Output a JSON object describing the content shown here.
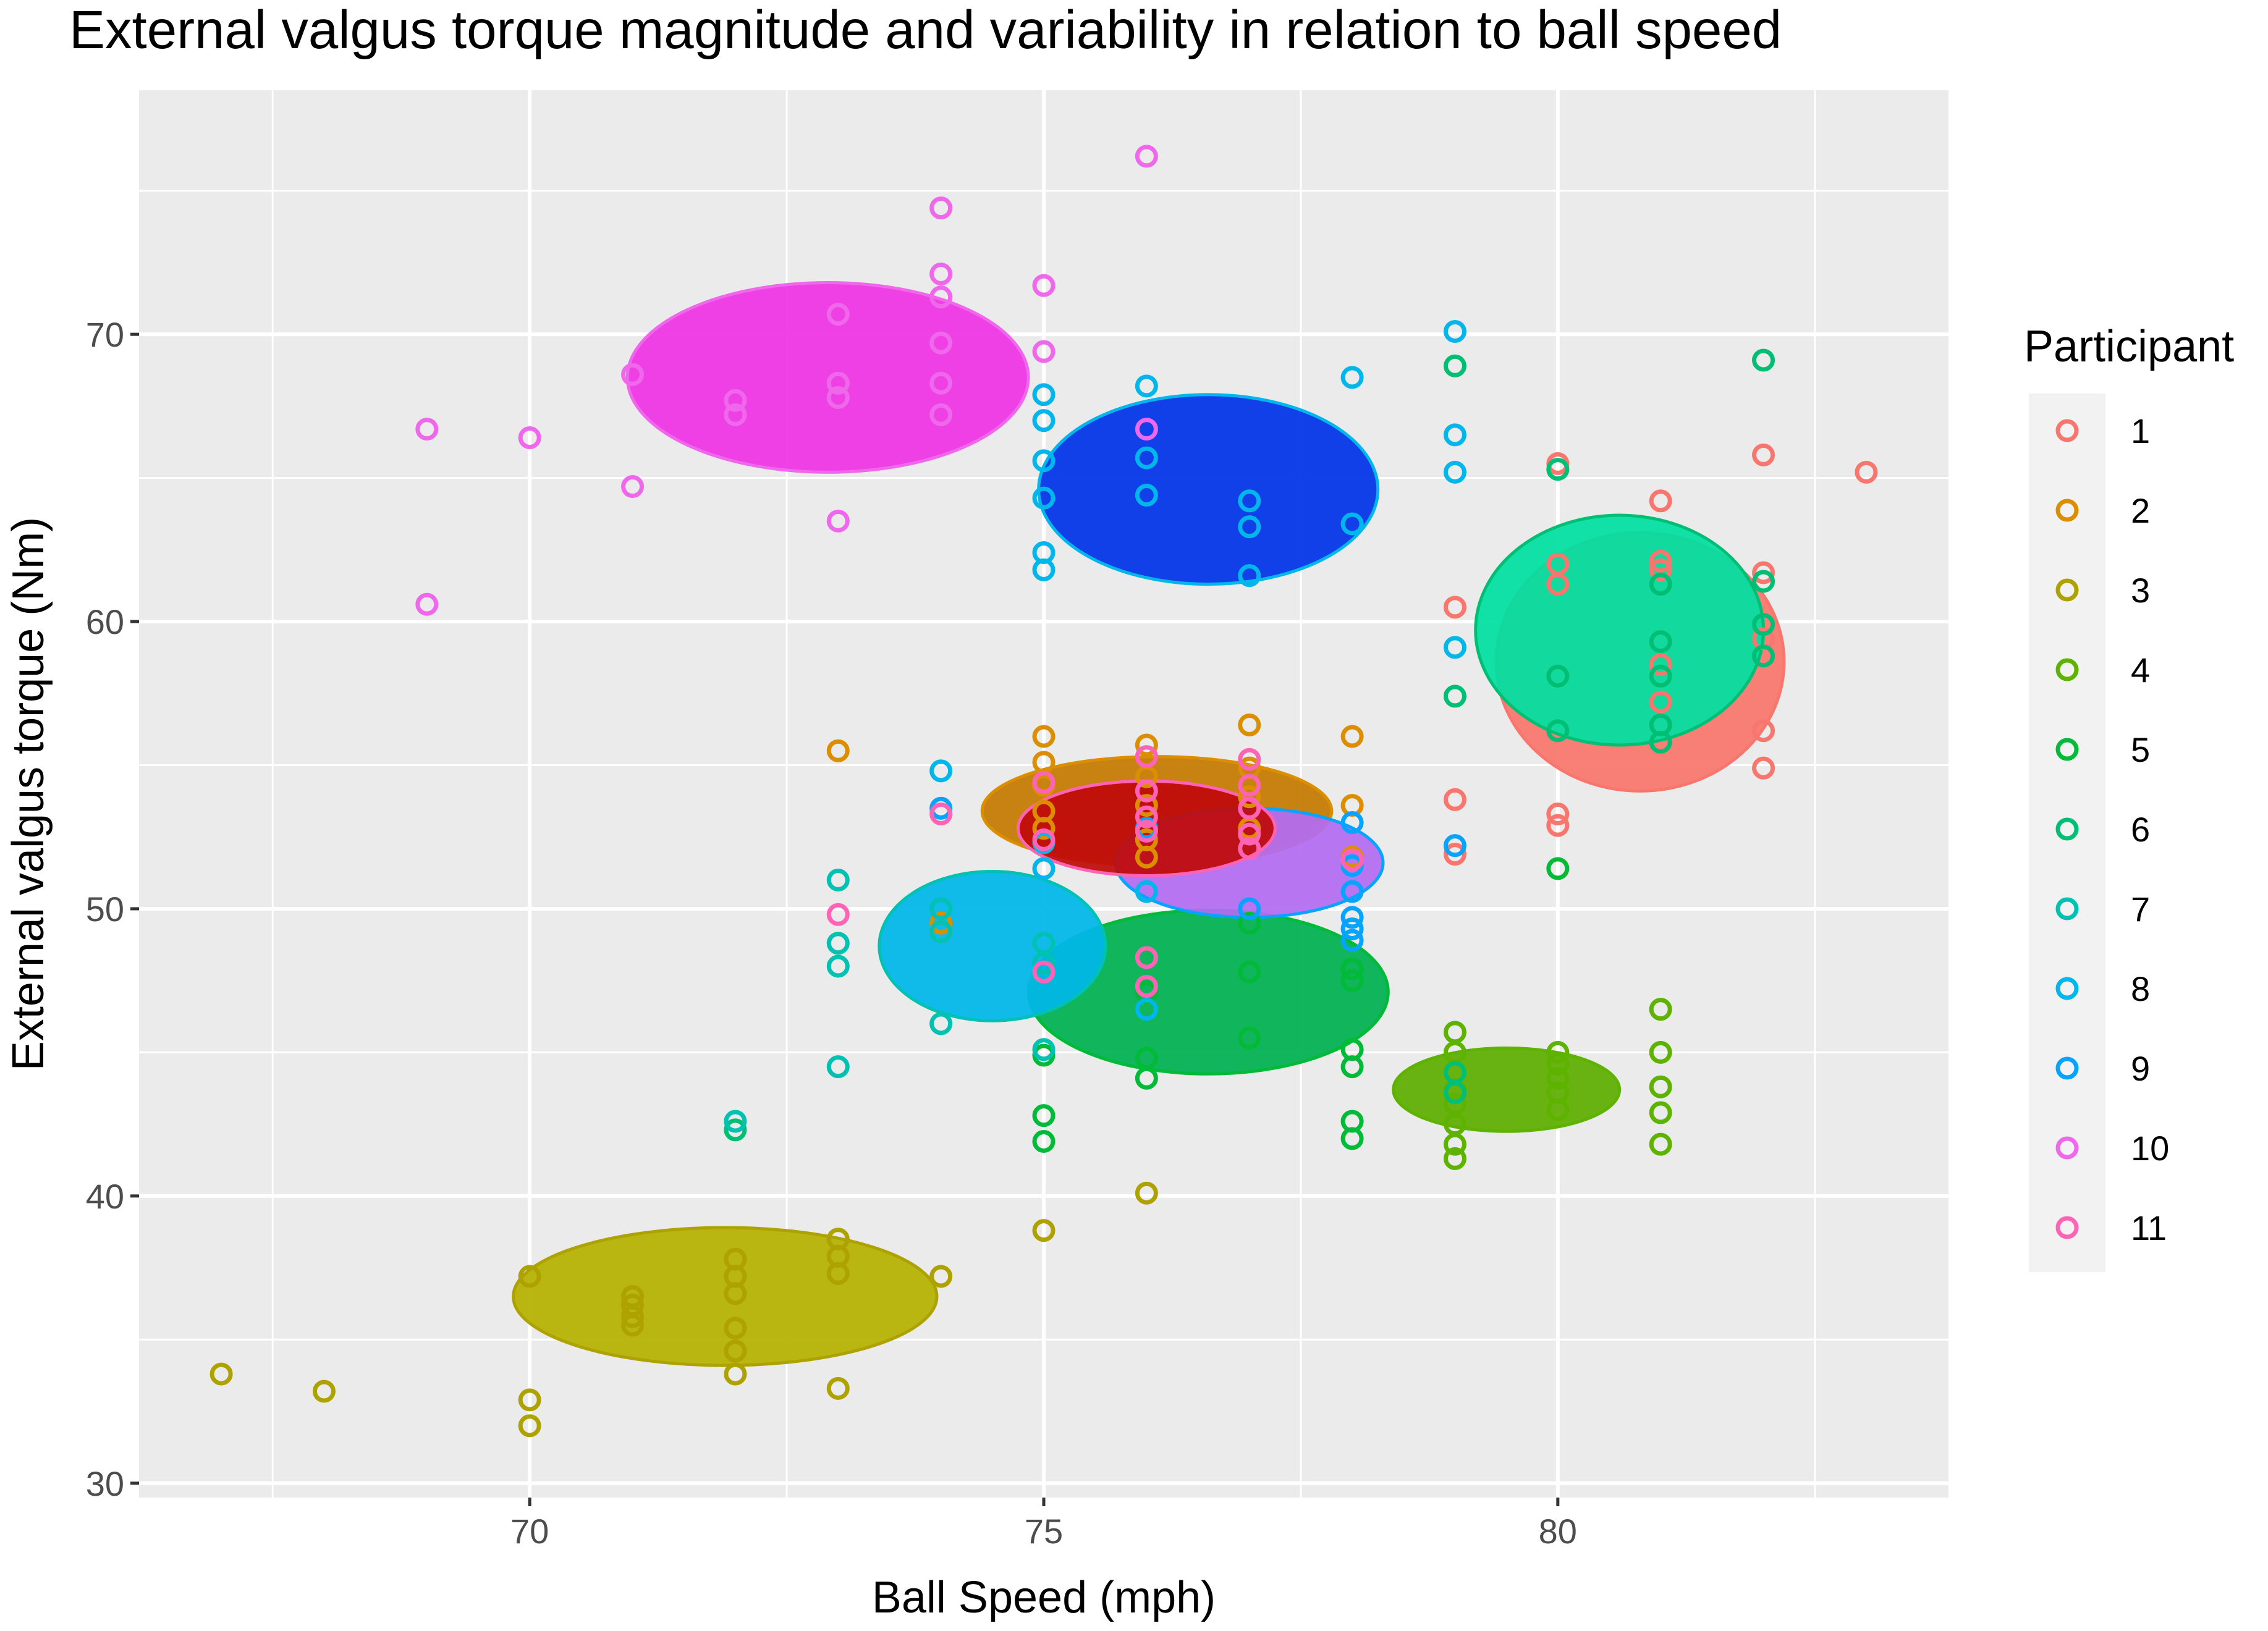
{
  "chart_data": {
    "type": "scatter",
    "title": "External valgus torque magnitude and variability in relation to ball speed",
    "xlabel": "Ball Speed (mph)",
    "ylabel": "External valgus torque (Nm)",
    "xlim": [
      66.2,
      83.8
    ],
    "ylim": [
      29.5,
      78.5
    ],
    "x_ticks": [
      70,
      75,
      80
    ],
    "y_ticks": [
      30,
      40,
      50,
      60,
      70
    ],
    "x_tick_labels": [
      "70",
      "75",
      "80"
    ],
    "y_tick_labels": [
      "30",
      "40",
      "50",
      "60",
      "70"
    ],
    "grid": true,
    "legend": {
      "title": "Participant",
      "position": "right",
      "entries": [
        "1",
        "2",
        "3",
        "4",
        "5",
        "6",
        "7",
        "8",
        "9",
        "10",
        "11"
      ]
    },
    "series": [
      {
        "name": "1",
        "color": "#F8766D",
        "ellipse": {
          "cx": 80.8,
          "cy": 58.6,
          "rx": 1.4,
          "ry": 4.5
        },
        "points": [
          [
            80,
            65.5
          ],
          [
            80,
            62
          ],
          [
            80,
            61.3
          ],
          [
            80,
            53.3
          ],
          [
            80,
            52.9
          ],
          [
            81,
            64.2
          ],
          [
            81,
            62.1
          ],
          [
            81,
            61.8
          ],
          [
            81,
            58.5
          ],
          [
            81,
            57.2
          ],
          [
            82,
            65.8
          ],
          [
            82,
            61.7
          ],
          [
            82,
            59.4
          ],
          [
            82,
            56.2
          ],
          [
            82,
            54.9
          ],
          [
            83,
            65.2
          ],
          [
            79,
            60.5
          ],
          [
            79,
            53.8
          ],
          [
            79,
            51.9
          ]
        ]
      },
      {
        "name": "2",
        "color": "#DB8E00",
        "ellipse": {
          "cx": 76.1,
          "cy": 53.4,
          "rx": 1.7,
          "ry": 1.9
        },
        "points": [
          [
            75,
            56
          ],
          [
            75,
            55.1
          ],
          [
            75,
            54.3
          ],
          [
            75,
            53.4
          ],
          [
            75,
            52.8
          ],
          [
            76,
            55.7
          ],
          [
            76,
            54.6
          ],
          [
            76,
            53.6
          ],
          [
            76,
            52.4
          ],
          [
            76,
            51.8
          ],
          [
            77,
            56.4
          ],
          [
            77,
            54.9
          ],
          [
            77,
            53.9
          ],
          [
            77,
            52.8
          ],
          [
            78,
            56
          ],
          [
            78,
            53.6
          ],
          [
            78,
            51.8
          ],
          [
            73,
            55.5
          ],
          [
            74,
            49.5
          ],
          [
            74,
            49.2
          ]
        ]
      },
      {
        "name": "3",
        "color": "#AEA200",
        "ellipse": {
          "cx": 71.9,
          "cy": 36.5,
          "rx": 2.06,
          "ry": 2.4
        },
        "points": [
          [
            67,
            33.8
          ],
          [
            68,
            33.2
          ],
          [
            70,
            37.2
          ],
          [
            70,
            32.9
          ],
          [
            70,
            32
          ],
          [
            71,
            36.5
          ],
          [
            71,
            36.2
          ],
          [
            71,
            35.8
          ],
          [
            71,
            35.5
          ],
          [
            72,
            37.8
          ],
          [
            72,
            37.2
          ],
          [
            72,
            36.6
          ],
          [
            72,
            35.4
          ],
          [
            72,
            34.6
          ],
          [
            72,
            33.8
          ],
          [
            73,
            38.5
          ],
          [
            73,
            37.9
          ],
          [
            73,
            37.3
          ],
          [
            73,
            33.3
          ],
          [
            74,
            37.2
          ],
          [
            75,
            38.8
          ],
          [
            76,
            40.1
          ],
          [
            77,
            45.5
          ]
        ]
      },
      {
        "name": "4",
        "color": "#5EB300",
        "ellipse": {
          "cx": 79.5,
          "cy": 43.7,
          "rx": 1.1,
          "ry": 1.45
        },
        "points": [
          [
            79,
            45.7
          ],
          [
            79,
            45
          ],
          [
            79,
            43.7
          ],
          [
            79,
            43.2
          ],
          [
            79,
            42.5
          ],
          [
            79,
            41.8
          ],
          [
            79,
            41.3
          ],
          [
            80,
            45
          ],
          [
            80,
            44.6
          ],
          [
            80,
            44.1
          ],
          [
            80,
            43.6
          ],
          [
            80,
            43
          ],
          [
            81,
            46.5
          ],
          [
            81,
            45
          ],
          [
            81,
            43.8
          ],
          [
            81,
            42.9
          ],
          [
            81,
            41.8
          ]
        ]
      },
      {
        "name": "5",
        "color": "#00BA38",
        "ellipse": {
          "cx": 76.6,
          "cy": 47.1,
          "rx": 1.75,
          "ry": 2.85
        },
        "points": [
          [
            75,
            42.8
          ],
          [
            75,
            41.9
          ],
          [
            75,
            44.9
          ],
          [
            76,
            47.1
          ],
          [
            76,
            44.8
          ],
          [
            76,
            44.1
          ],
          [
            77,
            49.5
          ],
          [
            77,
            47.8
          ],
          [
            77,
            45.5
          ],
          [
            78,
            47.9
          ],
          [
            78,
            47.5
          ],
          [
            78,
            45.1
          ],
          [
            78,
            44.5
          ],
          [
            78,
            42.6
          ],
          [
            78,
            42
          ],
          [
            80,
            51.4
          ]
        ]
      },
      {
        "name": "6",
        "color": "#00BF74",
        "ellipse": {
          "cx": 80.6,
          "cy": 59.7,
          "rx": 1.4,
          "ry": 4.0
        },
        "points": [
          [
            79,
            68.9
          ],
          [
            79,
            57.4
          ],
          [
            79,
            44.3
          ],
          [
            79,
            43.6
          ],
          [
            80,
            65.3
          ],
          [
            80,
            58.1
          ],
          [
            80,
            56.2
          ],
          [
            81,
            61.3
          ],
          [
            81,
            59.3
          ],
          [
            81,
            58.1
          ],
          [
            81,
            56.4
          ],
          [
            81,
            55.8
          ],
          [
            82,
            69.1
          ],
          [
            82,
            61.4
          ],
          [
            82,
            59.9
          ],
          [
            82,
            58.8
          ],
          [
            72,
            42.3
          ]
        ]
      },
      {
        "name": "7",
        "color": "#00C1B2",
        "ellipse": {
          "cx": 74.5,
          "cy": 48.7,
          "rx": 1.1,
          "ry": 2.6
        },
        "points": [
          [
            73,
            51
          ],
          [
            73,
            48.8
          ],
          [
            73,
            48
          ],
          [
            73,
            44.5
          ],
          [
            74,
            50
          ],
          [
            74,
            49.2
          ],
          [
            74,
            46
          ],
          [
            75,
            48.8
          ],
          [
            75,
            48.1
          ],
          [
            75,
            47.8
          ],
          [
            75,
            45.1
          ],
          [
            72,
            42.6
          ]
        ]
      },
      {
        "name": "8",
        "color": "#00B6EB",
        "ellipse": {
          "cx": 76.6,
          "cy": 64.6,
          "rx": 1.65,
          "ry": 3.3
        },
        "points": [
          [
            75,
            67.9
          ],
          [
            75,
            67
          ],
          [
            75,
            65.6
          ],
          [
            75,
            64.3
          ],
          [
            75,
            62.4
          ],
          [
            75,
            61.8
          ],
          [
            76,
            68.2
          ],
          [
            76,
            65.7
          ],
          [
            76,
            64.4
          ],
          [
            77,
            64.2
          ],
          [
            77,
            63.3
          ],
          [
            77,
            61.6
          ],
          [
            78,
            68.5
          ],
          [
            78,
            63.4
          ],
          [
            79,
            70.1
          ],
          [
            79,
            66.5
          ],
          [
            79,
            65.2
          ],
          [
            79,
            59.1
          ],
          [
            76,
            46.5
          ],
          [
            76,
            50.6
          ],
          [
            75,
            52.3
          ],
          [
            75,
            51.4
          ],
          [
            74,
            54.8
          ]
        ]
      },
      {
        "name": "9",
        "color": "#06A4FF",
        "ellipse": {
          "cx": 77.0,
          "cy": 51.6,
          "rx": 1.3,
          "ry": 1.9
        },
        "points": [
          [
            74,
            53.5
          ],
          [
            76,
            52.8
          ],
          [
            77,
            50
          ],
          [
            78,
            53
          ],
          [
            78,
            51.5
          ],
          [
            78,
            50.6
          ],
          [
            78,
            49.7
          ],
          [
            78,
            49.3
          ],
          [
            78,
            48.9
          ],
          [
            79,
            52.2
          ]
        ]
      },
      {
        "name": "10",
        "color": "#EF67EB",
        "ellipse": {
          "cx": 72.9,
          "cy": 68.5,
          "rx": 1.95,
          "ry": 3.3
        },
        "points": [
          [
            69,
            66.7
          ],
          [
            69,
            60.6
          ],
          [
            70,
            66.4
          ],
          [
            71,
            68.6
          ],
          [
            71,
            64.7
          ],
          [
            72,
            67.7
          ],
          [
            72,
            67.2
          ],
          [
            73,
            70.7
          ],
          [
            73,
            68.3
          ],
          [
            73,
            67.8
          ],
          [
            73,
            63.5
          ],
          [
            74,
            74.4
          ],
          [
            74,
            72.1
          ],
          [
            74,
            71.3
          ],
          [
            74,
            69.7
          ],
          [
            74,
            68.3
          ],
          [
            74,
            67.2
          ],
          [
            75,
            71.7
          ],
          [
            75,
            69.4
          ],
          [
            76,
            76.2
          ],
          [
            76,
            66.7
          ]
        ]
      },
      {
        "name": "11",
        "color": "#FF63B6",
        "ellipse": {
          "cx": 76.0,
          "cy": 52.8,
          "rx": 1.25,
          "ry": 1.65
        },
        "points": [
          [
            73,
            49.8
          ],
          [
            74,
            53.3
          ],
          [
            75,
            54.4
          ],
          [
            75,
            52.4
          ],
          [
            75,
            47.8
          ],
          [
            76,
            55.3
          ],
          [
            76,
            54.1
          ],
          [
            76,
            53.2
          ],
          [
            76,
            52.7
          ],
          [
            76,
            47.3
          ],
          [
            76,
            48.3
          ],
          [
            77,
            55.2
          ],
          [
            77,
            54.3
          ],
          [
            77,
            53.5
          ],
          [
            77,
            52.6
          ],
          [
            77,
            52.1
          ],
          [
            78,
            51.7
          ]
        ]
      }
    ]
  }
}
